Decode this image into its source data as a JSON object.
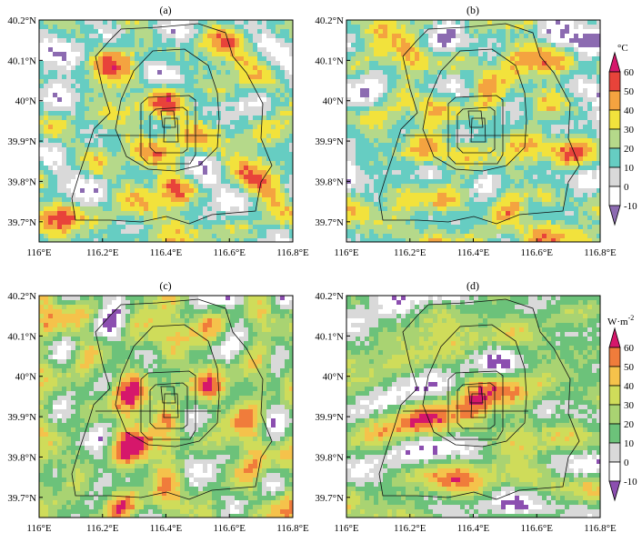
{
  "chart_data": [
    {
      "panel": "(a)",
      "type": "heatmap",
      "title": "(a)",
      "x_ticks": [
        "116°E",
        "116.2°E",
        "116.4°E",
        "116.6°E",
        "116.8°E"
      ],
      "y_ticks": [
        "39.7°N",
        "39.8°N",
        "39.9°N",
        "40°N",
        "40.1°N",
        "40.2°N"
      ],
      "xlim": [
        116.0,
        116.8
      ],
      "ylim": [
        39.65,
        40.2
      ],
      "colorbar": "temperature",
      "peak_value_approx": 60,
      "hotspots": [
        [
          116.41,
          40.0
        ],
        [
          116.07,
          39.71
        ],
        [
          116.43,
          39.78
        ]
      ]
    },
    {
      "panel": "(b)",
      "type": "heatmap",
      "title": "(b)",
      "x_ticks": [
        "116°E",
        "116.2°E",
        "116.4°E",
        "116.6°E",
        "116.8°E"
      ],
      "y_ticks": [
        "39.7°N",
        "39.8°N",
        "39.9°N",
        "40°N",
        "40.1°N",
        "40.2°N"
      ],
      "xlim": [
        116.0,
        116.8
      ],
      "ylim": [
        39.65,
        40.2
      ],
      "colorbar": "temperature",
      "peak_value_approx": 60,
      "hotspots": [
        [
          116.43,
          40.03
        ],
        [
          116.05,
          39.7
        ],
        [
          116.52,
          39.72
        ]
      ]
    },
    {
      "panel": "(c)",
      "type": "heatmap",
      "title": "(c)",
      "x_ticks": [
        "116°E",
        "116.2°E",
        "116.4°E",
        "116.6°E",
        "116.8°E"
      ],
      "y_ticks": [
        "39.7°N",
        "39.8°N",
        "39.9°N",
        "40°N",
        "40.1°N",
        "40.2°N"
      ],
      "xlim": [
        116.0,
        116.8
      ],
      "ylim": [
        39.65,
        40.2
      ],
      "colorbar": "flux",
      "peak_value_approx": 55,
      "hotspots": [
        [
          116.08,
          39.73
        ],
        [
          116.4,
          39.9
        ]
      ]
    },
    {
      "panel": "(d)",
      "type": "heatmap",
      "title": "(d)",
      "x_ticks": [
        "116°E",
        "116.2°E",
        "116.4°E",
        "116.6°E",
        "116.8°E"
      ],
      "y_ticks": [
        "39.7°N",
        "39.8°N",
        "39.9°N",
        "40°N",
        "40.1°N",
        "40.2°N"
      ],
      "xlim": [
        116.0,
        116.8
      ],
      "ylim": [
        39.65,
        40.2
      ],
      "colorbar": "flux",
      "peak_value_approx": 45,
      "hotspots": [
        [
          116.55,
          39.91
        ],
        [
          116.4,
          39.9
        ]
      ]
    }
  ],
  "colorbars": {
    "temperature": {
      "unit": "°C",
      "ticks": [
        "60",
        "50",
        "40",
        "30",
        "20",
        "10",
        "0",
        "-10"
      ],
      "levels": [
        -10,
        0,
        10,
        20,
        30,
        40,
        50,
        60
      ],
      "colors": [
        "#8c6bb1",
        "#ffffff",
        "#d9d9d9",
        "#66cdc2",
        "#b5d98a",
        "#f2e23c",
        "#f4a340",
        "#e8433a",
        "#d6176b"
      ]
    },
    "flux": {
      "unit_base": "W·m",
      "unit_exp": "-2",
      "ticks": [
        "60",
        "50",
        "40",
        "30",
        "20",
        "10",
        "0",
        "-10"
      ],
      "levels": [
        -10,
        0,
        10,
        20,
        30,
        40,
        50,
        60
      ],
      "colors": [
        "#8c4fb0",
        "#ffffff",
        "#d9d9d9",
        "#6cc27a",
        "#a9d372",
        "#cfdc5a",
        "#f5c24b",
        "#f07c3b",
        "#d6176b"
      ]
    }
  }
}
